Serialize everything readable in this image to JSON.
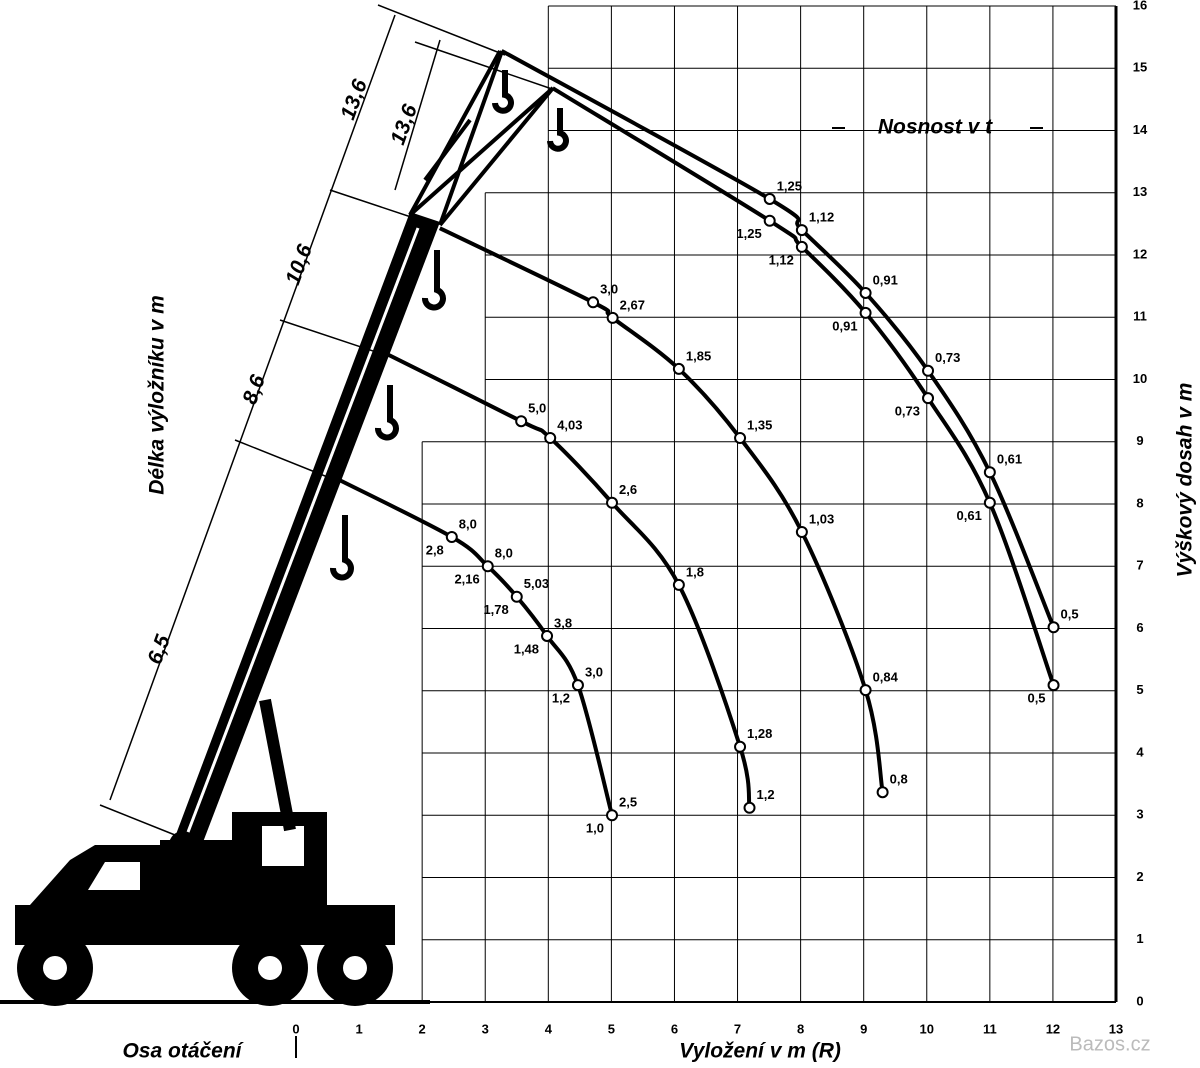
{
  "chart_data": {
    "type": "crane-load",
    "title": "Nosnost v t",
    "x_label": "Vyložení v m (R)",
    "y_label": "Výškový dosah v m",
    "boom_label": "Délka výložníku v m",
    "axis_note": "Osa otáčení",
    "watermark": "Bazos.cz",
    "xlim": [
      0,
      13
    ],
    "xticks": [
      0,
      1,
      2,
      3,
      4,
      5,
      6,
      7,
      8,
      9,
      10,
      11,
      12,
      13
    ],
    "ylim": [
      0,
      16
    ],
    "yticks": [
      0,
      1,
      2,
      3,
      4,
      5,
      6,
      7,
      8,
      9,
      10,
      11,
      12,
      13,
      14,
      15,
      16
    ],
    "grid": true,
    "color": "#000000",
    "series": [
      {
        "name": "6,5",
        "x": [
          0.62,
          2.47,
          3.04,
          3.5,
          3.98,
          4.47,
          5.01
        ],
        "y": [
          8.42,
          7.47,
          7.0,
          6.51,
          5.88,
          5.09,
          3.0
        ],
        "capacity": [
          null,
          8.0,
          8.0,
          5.03,
          3.8,
          3.0,
          2.5
        ],
        "capacity_labels": [
          null,
          "8,0",
          "8,0",
          "5,03",
          "3,8",
          "3,0",
          "2,5"
        ],
        "capacity_alt": [
          null,
          2.8,
          2.16,
          1.78,
          1.48,
          1.2,
          1.0
        ],
        "capacity_alt_labels": [
          null,
          "2,8",
          "2,16",
          "1,78",
          "1,48",
          "1,2",
          "1,0"
        ]
      },
      {
        "name": "8,6",
        "x": [
          1.38,
          3.57,
          4.03,
          5.01,
          6.07,
          7.04,
          7.19
        ],
        "y": [
          10.44,
          9.33,
          9.06,
          8.02,
          6.7,
          4.1,
          3.12
        ],
        "capacity": [
          null,
          5.0,
          4.03,
          2.6,
          1.8,
          1.28,
          1.2
        ],
        "capacity_labels": [
          null,
          "5,0",
          "4,03",
          "2,6",
          "1,8",
          "1,28",
          "1,2"
        ]
      },
      {
        "name": "10,6",
        "x": [
          2.28,
          4.71,
          5.02,
          6.07,
          7.04,
          8.02,
          9.03,
          9.3
        ],
        "y": [
          12.43,
          11.24,
          10.99,
          10.17,
          9.06,
          7.55,
          5.01,
          3.37
        ],
        "capacity": [
          null,
          3.0,
          2.67,
          1.85,
          1.35,
          1.03,
          0.84,
          0.8
        ],
        "capacity_labels": [
          null,
          "3,0",
          "2,67",
          "1,85",
          "1,35",
          "1,03",
          "0,84",
          "0,8"
        ]
      },
      {
        "name": "13,6",
        "x": [
          3.26,
          7.51,
          8.02,
          9.03,
          10.02,
          11.0,
          12.01
        ],
        "y": [
          15.28,
          12.9,
          12.4,
          11.39,
          10.14,
          8.51,
          6.02
        ],
        "capacity": [
          null,
          1.25,
          1.12,
          0.91,
          0.73,
          0.61,
          0.5
        ],
        "capacity_labels": [
          null,
          "1,25",
          "1,12",
          "0,91",
          "0,73",
          "0,61",
          "0,5"
        ]
      },
      {
        "name": "13,6",
        "x": [
          4.07,
          7.51,
          8.02,
          9.03,
          10.02,
          11.0,
          12.01
        ],
        "y": [
          14.68,
          12.55,
          12.13,
          11.07,
          9.7,
          8.02,
          5.09
        ],
        "capacity": [
          null,
          1.25,
          1.12,
          0.91,
          0.73,
          0.61,
          0.5
        ],
        "capacity_labels": [
          null,
          "1,25",
          "1,12",
          "0,91",
          "0,73",
          "0,61",
          "0,5"
        ]
      }
    ]
  }
}
